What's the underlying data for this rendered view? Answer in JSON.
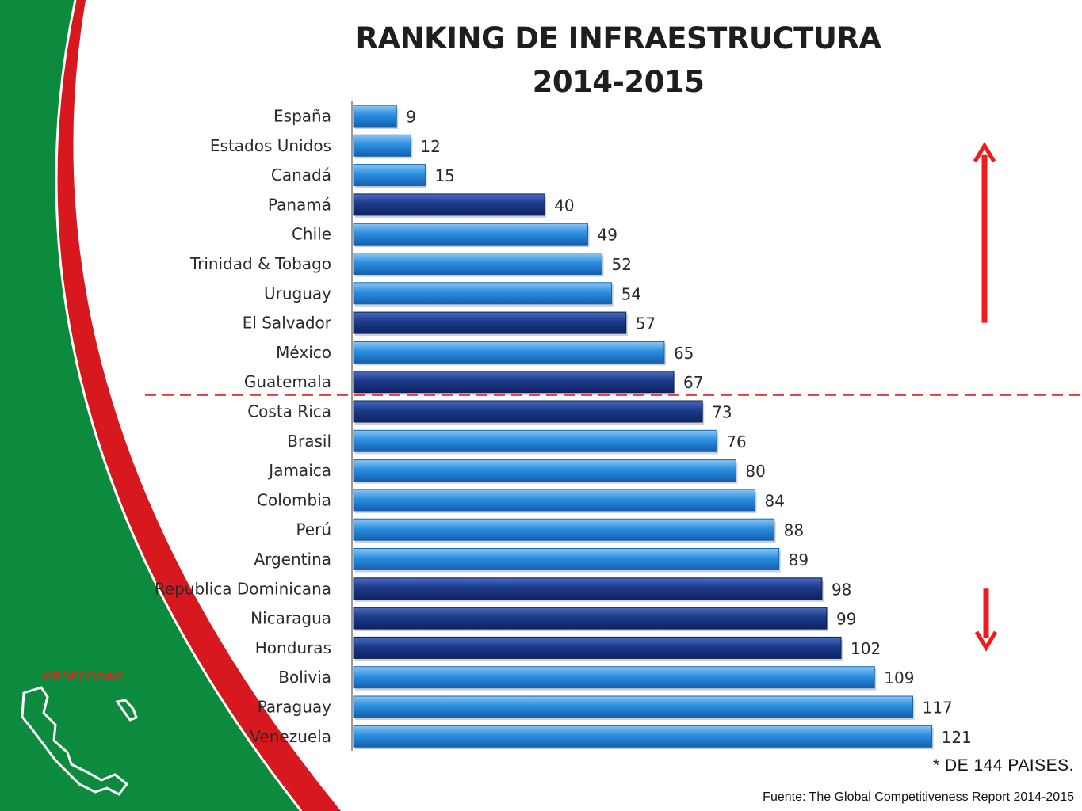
{
  "header": {
    "title_line1": "RANKING DE INFRAESTRUCTURA",
    "title_line2": "2014-2015"
  },
  "logo": {
    "text": "ORDECCCAC"
  },
  "footer": {
    "note": "* DE 144 PAISES.",
    "source": "Fuente: The Global Competitiveness Report 2014-2015"
  },
  "colors": {
    "green": "#0c8a3e",
    "red_band": "#d7191f",
    "light_bar": "#2b8fe0",
    "dark_bar": "#1b3a8a",
    "arrow": "#ee1c1c",
    "divider": "#e23b3b"
  },
  "chart_data": {
    "type": "bar",
    "orientation": "horizontal",
    "title": "RANKING DE INFRAESTRUCTURA 2014-2015",
    "xlim": [
      0,
      125
    ],
    "categories": [
      "España",
      "Estados Unidos",
      "Canadá",
      "Panamá",
      "Chile",
      "Trinidad & Tobago",
      "Uruguay",
      "El Salvador",
      "México",
      "Guatemala",
      "Costa Rica",
      "Brasil",
      "Jamaica",
      "Colombia",
      "Perú",
      "Argentina",
      "Republica Dominicana",
      "Nicaragua",
      "Honduras",
      "Bolivia",
      "Paraguay",
      "Venezuela"
    ],
    "values": [
      9,
      12,
      15,
      40,
      49,
      52,
      54,
      57,
      65,
      67,
      73,
      76,
      80,
      84,
      88,
      89,
      98,
      99,
      102,
      109,
      117,
      121
    ],
    "highlight": [
      false,
      false,
      false,
      true,
      false,
      false,
      false,
      true,
      false,
      true,
      true,
      false,
      false,
      false,
      false,
      false,
      true,
      true,
      true,
      false,
      false,
      false
    ],
    "divider_after_index": 9,
    "arrows": [
      {
        "direction": "up",
        "range": [
          "Estados Unidos",
          "El Salvador"
        ]
      },
      {
        "direction": "down",
        "range": [
          "Honduras",
          "Republica Dominicana"
        ]
      }
    ]
  }
}
